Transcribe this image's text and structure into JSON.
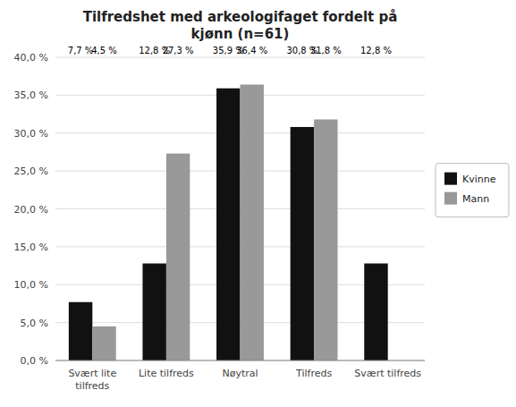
{
  "chart_data": {
    "type": "bar",
    "title": "Tilfredshet med arkeologifaget fordelt på\nkjønn (n=61)",
    "categories": [
      "Svært lite\ntilfreds",
      "Lite tilfreds",
      "Nøytral",
      "Tilfreds",
      "Svært tilfreds"
    ],
    "series": [
      {
        "name": "Kvinne",
        "color": "#111111",
        "values": [
          7.7,
          12.8,
          35.9,
          30.8,
          12.8
        ],
        "value_labels": [
          "7,7 %",
          "12,8 %",
          "35,9 %",
          "30,8 %",
          "12,8 %"
        ]
      },
      {
        "name": "Mann",
        "color": "#999999",
        "values": [
          4.5,
          27.3,
          36.4,
          31.8,
          0.0
        ],
        "value_labels": [
          "4,5 %",
          "27,3 %",
          "36,4 %",
          "31,8 %",
          null
        ]
      }
    ],
    "ylim": [
      0,
      40
    ],
    "yticks": [
      {
        "value": 0,
        "label": "0,0 %"
      },
      {
        "value": 5,
        "label": "5,0 %"
      },
      {
        "value": 10,
        "label": "10,0 %"
      },
      {
        "value": 15,
        "label": "15,0 %"
      },
      {
        "value": 20,
        "label": "20,0 %"
      },
      {
        "value": 25,
        "label": "25,0 %"
      },
      {
        "value": 30,
        "label": "30,0 %"
      },
      {
        "value": 35,
        "label": "35,0 %"
      },
      {
        "value": 40,
        "label": "40,0 %"
      }
    ],
    "grid": true,
    "legend": "right",
    "data_labels": true
  }
}
